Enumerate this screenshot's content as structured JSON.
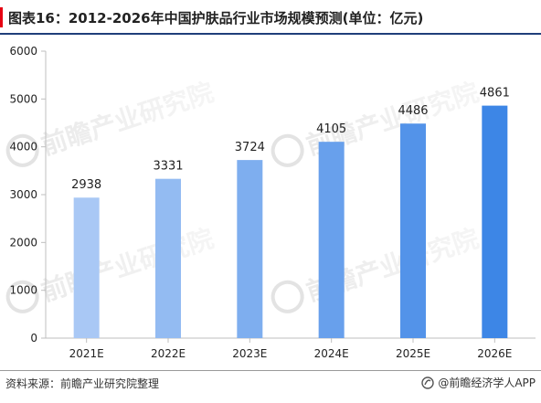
{
  "header": {
    "title": "图表16：2012-2026年中国护肤品行业市场规模预测(单位：亿元)"
  },
  "footer": {
    "source": "资料来源：前瞻产业研究院整理",
    "brand": "@前瞻经济学人APP"
  },
  "watermark": {
    "text": "前瞻产业研究院"
  },
  "colors": {
    "bar_light": "#a9c8f5",
    "bar_dark": "#3d86e6",
    "axis": "#bfbfbf",
    "title_accent": "#e60012",
    "title_rule": "#1f3f7a"
  },
  "chart_data": {
    "type": "bar",
    "categories": [
      "2021E",
      "2022E",
      "2023E",
      "2024E",
      "2025E",
      "2026E"
    ],
    "values": [
      2938,
      3331,
      3724,
      4105,
      4486,
      4861
    ],
    "ylim": [
      0,
      6000
    ],
    "yticks": [
      0,
      1000,
      2000,
      3000,
      4000,
      5000,
      6000
    ],
    "grid": false,
    "data_labels": true
  }
}
